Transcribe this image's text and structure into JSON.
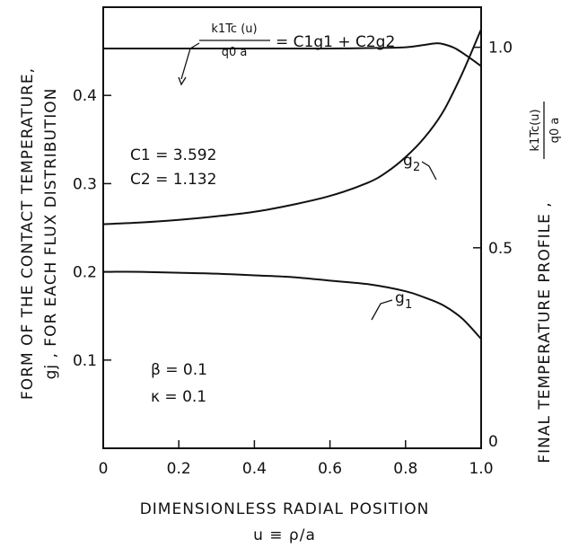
{
  "chart_data": {
    "type": "line",
    "xlabel": "DIMENSIONLESS RADIAL POSITION",
    "xlabel_sub": "u ≡ ρ/a",
    "ylabel_left_line1": "FORM OF THE CONTACT TEMPERATURE,",
    "ylabel_left_line2": "gj , FOR EACH FLUX DISTRIBUTION",
    "ylabel_right_prefix": "FINAL TEMPERATURE PROFILE ,",
    "xlim": [
      0,
      1.0
    ],
    "ylim_left": [
      0,
      0.5
    ],
    "ylim_right": [
      0,
      1.1
    ],
    "x_ticks": [
      "0",
      "0.2",
      "0.4",
      "0.6",
      "0.8",
      "1.0"
    ],
    "x_tick_values": [
      0,
      0.2,
      0.4,
      0.6,
      0.8,
      1.0
    ],
    "y_left_ticks": [
      "0.1",
      "0.2",
      "0.3",
      "0.4"
    ],
    "y_left_tick_values": [
      0.1,
      0.2,
      0.3,
      0.4
    ],
    "y_right_ticks": [
      "0",
      "0.5",
      "1.0"
    ],
    "y_right_tick_values": [
      0,
      0.5,
      1.0
    ],
    "grid": false,
    "series": [
      {
        "name": "g1",
        "axis": "left",
        "x": [
          0,
          0.1,
          0.2,
          0.3,
          0.4,
          0.5,
          0.6,
          0.7,
          0.8,
          0.85,
          0.9,
          0.95,
          1.0
        ],
        "y": [
          0.2,
          0.2,
          0.199,
          0.198,
          0.196,
          0.194,
          0.19,
          0.186,
          0.178,
          0.171,
          0.162,
          0.147,
          0.124
        ]
      },
      {
        "name": "g2",
        "axis": "left",
        "x": [
          0,
          0.1,
          0.2,
          0.3,
          0.4,
          0.5,
          0.6,
          0.7,
          0.75,
          0.8,
          0.85,
          0.9,
          0.95,
          1.0
        ],
        "y": [
          0.254,
          0.256,
          0.259,
          0.263,
          0.268,
          0.276,
          0.286,
          0.301,
          0.313,
          0.33,
          0.352,
          0.382,
          0.425,
          0.475
        ]
      },
      {
        "name": "k1Tc(u)/q0a = C1g1 + C2g2",
        "axis": "right",
        "x": [
          0,
          0.2,
          0.4,
          0.6,
          0.7,
          0.8,
          0.85,
          0.88,
          0.9,
          0.93,
          0.96,
          1.0
        ],
        "y": [
          0.997,
          0.997,
          0.997,
          0.997,
          0.998,
          1.0,
          1.006,
          1.01,
          1.008,
          0.998,
          0.98,
          0.953
        ]
      }
    ],
    "annotations": {
      "g1_label": "g",
      "g1_sub": "1",
      "g2_label": "g",
      "g2_sub": "2",
      "top_num": "k1Tc (u)",
      "top_den": "q0 a",
      "top_rhs": "= C1g1 + C2g2",
      "c1": "C1 = 3.592",
      "c2": "C2 = 1.132",
      "beta": "β = 0.1",
      "kappa": "κ = 0.1",
      "right_num": "k1Tc(u)",
      "right_den": "q0 a"
    }
  }
}
